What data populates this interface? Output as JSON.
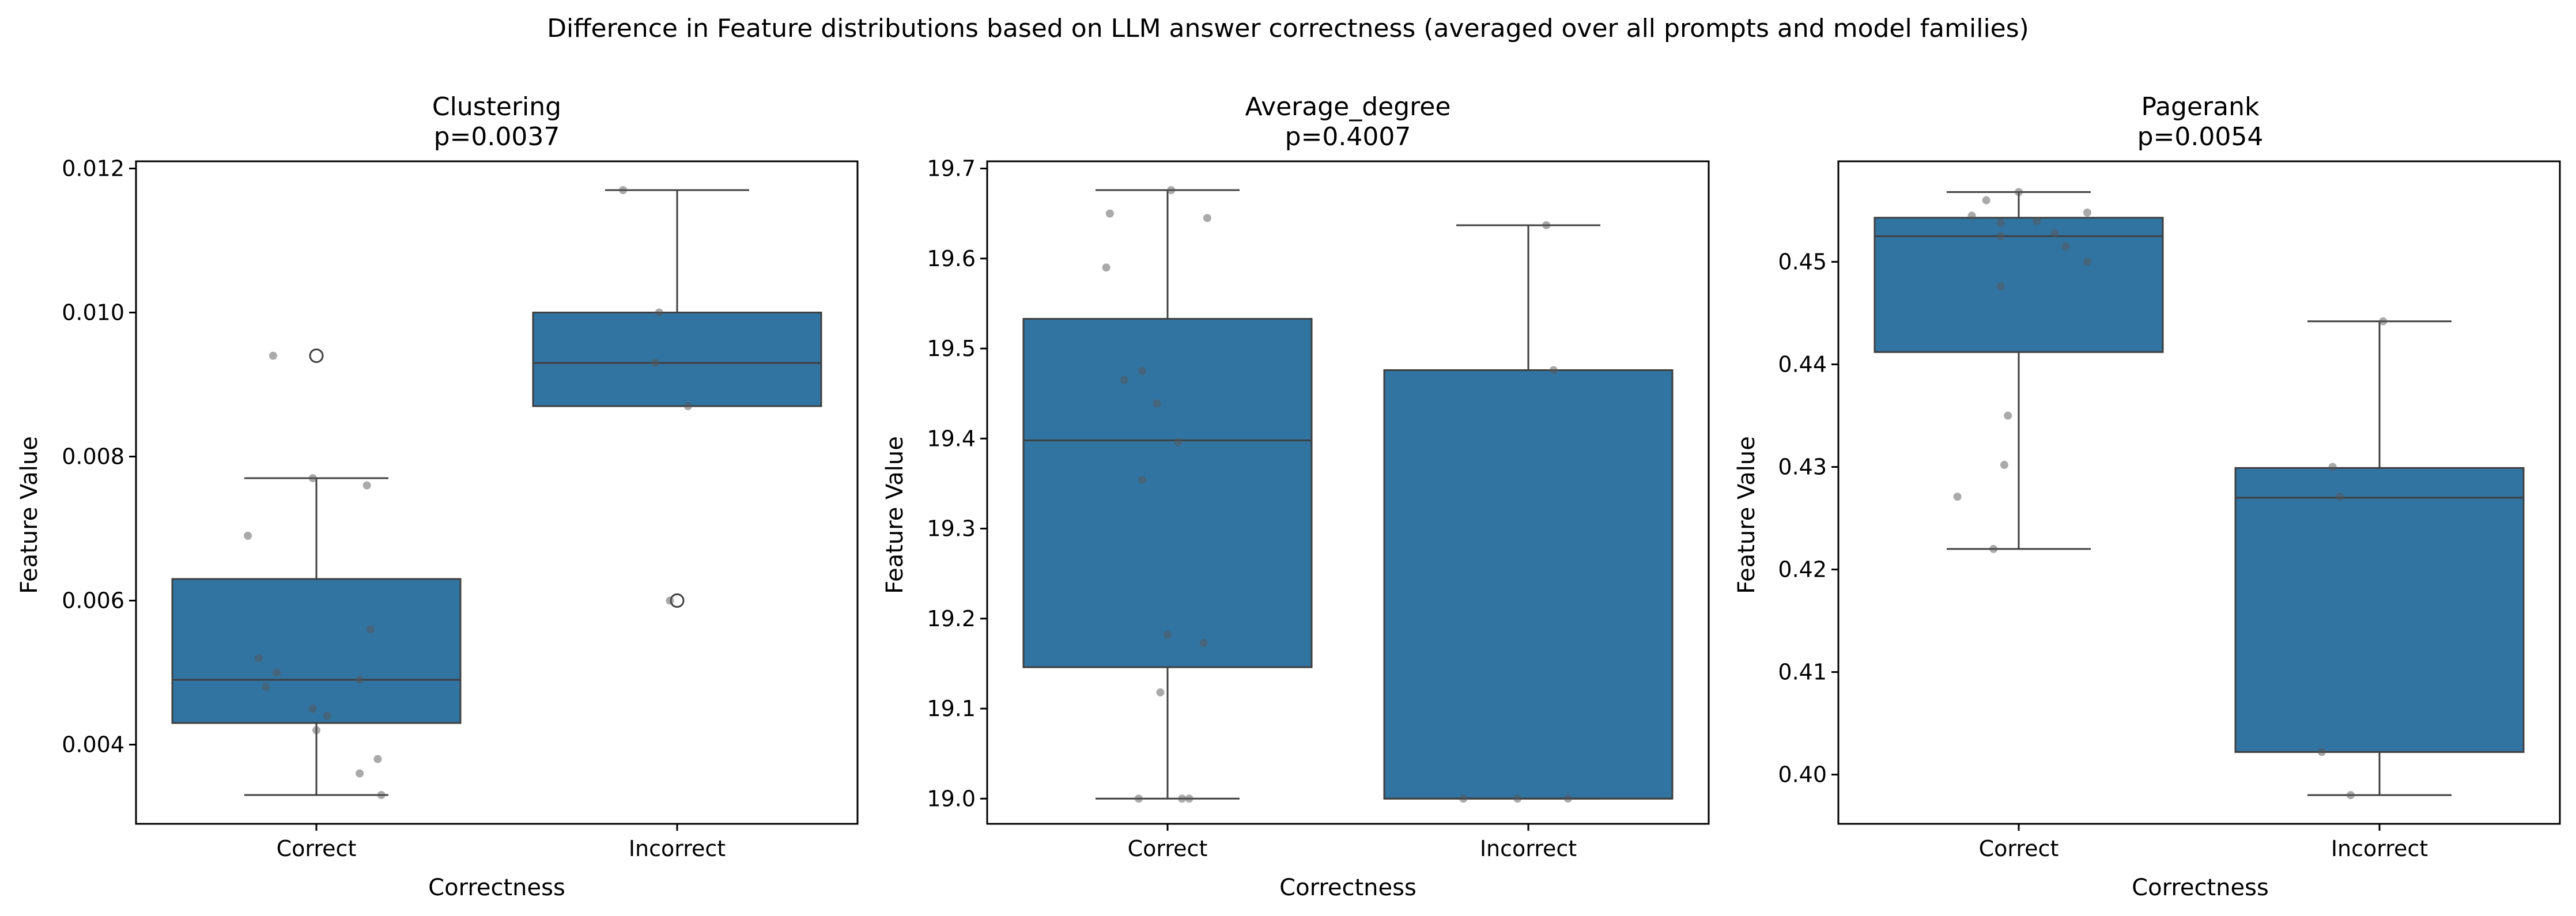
{
  "figure": {
    "title": "Difference in Feature distributions based on LLM answer correctness (averaged over all prompts and model families)"
  },
  "colors": {
    "box_fill": "#3274a1",
    "box_edge": "#3f3f3f",
    "points": "#555555",
    "axes": "#000000"
  },
  "chart_data": [
    {
      "type": "box",
      "title": "Clustering",
      "subtitle": "p=0.0037",
      "xlabel": "Correctness",
      "ylabel": "Feature Value",
      "categories": [
        "Correct",
        "Incorrect"
      ],
      "ylim": [
        0.0029,
        0.0121
      ],
      "yticks": [
        0.004,
        0.006,
        0.008,
        0.01,
        0.012
      ],
      "ytick_labels": [
        "0.004",
        "0.006",
        "0.008",
        "0.010",
        "0.012"
      ],
      "boxes": [
        {
          "q1": 0.0043,
          "median": 0.0049,
          "q3": 0.0063,
          "whisker_low": 0.0033,
          "whisker_high": 0.0077,
          "outliers": [
            0.0094
          ]
        },
        {
          "q1": 0.0087,
          "median": 0.0093,
          "q3": 0.01,
          "whisker_low": 0.0087,
          "whisker_high": 0.0117,
          "outliers": [
            0.006
          ]
        }
      ],
      "points": [
        [
          {
            "x": -0.12,
            "y": 0.0094
          },
          {
            "x": -0.01,
            "y": 0.0077
          },
          {
            "x": 0.14,
            "y": 0.0076
          },
          {
            "x": -0.19,
            "y": 0.0069
          },
          {
            "x": 0.15,
            "y": 0.0056
          },
          {
            "x": -0.16,
            "y": 0.0052
          },
          {
            "x": -0.11,
            "y": 0.005
          },
          {
            "x": -0.14,
            "y": 0.0048
          },
          {
            "x": 0.12,
            "y": 0.0049
          },
          {
            "x": -0.01,
            "y": 0.0045
          },
          {
            "x": 0.03,
            "y": 0.0044
          },
          {
            "x": 0.0,
            "y": 0.0042
          },
          {
            "x": 0.17,
            "y": 0.0038
          },
          {
            "x": 0.12,
            "y": 0.0036
          },
          {
            "x": 0.18,
            "y": 0.0033
          }
        ],
        [
          {
            "x": -0.15,
            "y": 0.0117
          },
          {
            "x": -0.05,
            "y": 0.01
          },
          {
            "x": -0.06,
            "y": 0.0093
          },
          {
            "x": 0.03,
            "y": 0.0087
          },
          {
            "x": -0.02,
            "y": 0.006
          }
        ]
      ]
    },
    {
      "type": "box",
      "title": "Average_degree",
      "subtitle": "p=0.4007",
      "xlabel": "Correctness",
      "ylabel": "Feature Value",
      "categories": [
        "Correct",
        "Incorrect"
      ],
      "ylim": [
        18.972,
        19.708
      ],
      "yticks": [
        19.0,
        19.1,
        19.2,
        19.3,
        19.4,
        19.5,
        19.6,
        19.7
      ],
      "ytick_labels": [
        "19.0",
        "19.1",
        "19.2",
        "19.3",
        "19.4",
        "19.5",
        "19.6",
        "19.7"
      ],
      "boxes": [
        {
          "q1": 19.146,
          "median": 19.398,
          "q3": 19.533,
          "whisker_low": 19.0,
          "whisker_high": 19.676,
          "outliers": []
        },
        {
          "q1": 19.0,
          "median": 19.0,
          "q3": 19.476,
          "whisker_low": 19.0,
          "whisker_high": 19.637,
          "outliers": []
        }
      ],
      "points": [
        [
          {
            "x": 0.01,
            "y": 19.676
          },
          {
            "x": -0.16,
            "y": 19.65
          },
          {
            "x": 0.11,
            "y": 19.645
          },
          {
            "x": -0.17,
            "y": 19.59
          },
          {
            "x": -0.07,
            "y": 19.475
          },
          {
            "x": -0.12,
            "y": 19.465
          },
          {
            "x": -0.03,
            "y": 19.439
          },
          {
            "x": 0.03,
            "y": 19.396
          },
          {
            "x": -0.07,
            "y": 19.354
          },
          {
            "x": 0.0,
            "y": 19.182
          },
          {
            "x": 0.1,
            "y": 19.173
          },
          {
            "x": -0.02,
            "y": 19.118
          },
          {
            "x": -0.08,
            "y": 19.0
          },
          {
            "x": 0.04,
            "y": 19.0
          },
          {
            "x": 0.06,
            "y": 19.0
          }
        ],
        [
          {
            "x": 0.05,
            "y": 19.637
          },
          {
            "x": 0.07,
            "y": 19.476
          },
          {
            "x": -0.18,
            "y": 19.0
          },
          {
            "x": -0.03,
            "y": 19.0
          },
          {
            "x": 0.11,
            "y": 19.0
          }
        ]
      ]
    },
    {
      "type": "box",
      "title": "Pagerank",
      "subtitle": "p=0.0054",
      "xlabel": "Correctness",
      "ylabel": "Feature Value",
      "categories": [
        "Correct",
        "Incorrect"
      ],
      "ylim": [
        0.3952,
        0.4598
      ],
      "yticks": [
        0.4,
        0.41,
        0.42,
        0.43,
        0.44,
        0.45
      ],
      "ytick_labels": [
        "0.40",
        "0.41",
        "0.42",
        "0.43",
        "0.44",
        "0.45"
      ],
      "boxes": [
        {
          "q1": 0.4412,
          "median": 0.4525,
          "q3": 0.4543,
          "whisker_low": 0.422,
          "whisker_high": 0.4568,
          "outliers": []
        },
        {
          "q1": 0.4022,
          "median": 0.427,
          "q3": 0.4299,
          "whisker_low": 0.398,
          "whisker_high": 0.4442,
          "outliers": []
        }
      ],
      "points": [
        [
          {
            "x": 0.0,
            "y": 0.4568
          },
          {
            "x": -0.09,
            "y": 0.456
          },
          {
            "x": 0.19,
            "y": 0.4548
          },
          {
            "x": -0.13,
            "y": 0.4545
          },
          {
            "x": -0.05,
            "y": 0.4538
          },
          {
            "x": 0.05,
            "y": 0.454
          },
          {
            "x": 0.1,
            "y": 0.4528
          },
          {
            "x": -0.05,
            "y": 0.4525
          },
          {
            "x": 0.13,
            "y": 0.4515
          },
          {
            "x": 0.19,
            "y": 0.45
          },
          {
            "x": -0.05,
            "y": 0.4476
          },
          {
            "x": -0.03,
            "y": 0.435
          },
          {
            "x": -0.04,
            "y": 0.4302
          },
          {
            "x": -0.17,
            "y": 0.4271
          },
          {
            "x": -0.07,
            "y": 0.422
          }
        ],
        [
          {
            "x": 0.01,
            "y": 0.4442
          },
          {
            "x": -0.13,
            "y": 0.43
          },
          {
            "x": -0.11,
            "y": 0.4271
          },
          {
            "x": -0.16,
            "y": 0.4022
          },
          {
            "x": -0.08,
            "y": 0.398
          }
        ]
      ]
    }
  ]
}
